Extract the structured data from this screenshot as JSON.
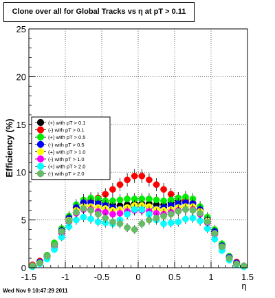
{
  "title": "Clone  over all for Global Tracks vs η at pT > 0.11",
  "footer": "Wed Nov  9 10:47:29 2011",
  "colors": {
    "black": "#000000",
    "red": "#ff0000",
    "green": "#00ee00",
    "blue": "#0000ff",
    "yellow": "#ffff00",
    "magenta": "#ff00ff",
    "cyan": "#00ffff",
    "olive": "#66bb66"
  },
  "chart_data": {
    "type": "scatter",
    "title": "Clone  over all for Global Tracks vs η at pT > 0.11",
    "xlabel": "η",
    "ylabel": "Efficiency (%)",
    "xlim": [
      -1.5,
      1.5
    ],
    "ylim": [
      0,
      25
    ],
    "x_ticks": [
      "-1.5",
      "-1",
      "-0.5",
      "0",
      "0.5",
      "1",
      "1.5"
    ],
    "y_ticks": [
      "0",
      "5",
      "10",
      "15",
      "20",
      "25"
    ],
    "grid": true,
    "legend_position": "left-middle",
    "legend": [
      {
        "label": "(+) with pT > 0.1",
        "color": "#000000"
      },
      {
        "label": "(-) with pT > 0.1",
        "color": "#ff0000"
      },
      {
        "label": "(+) with pT > 0.5",
        "color": "#00ee00"
      },
      {
        "label": "(-) with pT > 0.5",
        "color": "#0000ff"
      },
      {
        "label": "(+) with pT > 1.0",
        "color": "#ffff00"
      },
      {
        "label": "(-) with pT > 1.0",
        "color": "#ff00ff"
      },
      {
        "label": "(+) with pT > 2.0",
        "color": "#00ffff"
      },
      {
        "label": "(-) with pT > 2.0",
        "color": "#66bb66"
      }
    ],
    "x": [
      -1.45,
      -1.35,
      -1.25,
      -1.15,
      -1.05,
      -0.95,
      -0.85,
      -0.75,
      -0.65,
      -0.55,
      -0.45,
      -0.35,
      -0.25,
      -0.15,
      -0.05,
      0.05,
      0.15,
      0.25,
      0.35,
      0.45,
      0.55,
      0.65,
      0.75,
      0.85,
      0.95,
      1.05,
      1.15,
      1.25,
      1.35,
      1.45
    ],
    "series": [
      {
        "color": "#000000",
        "values": [
          0.2,
          0.6,
          1.2,
          2.4,
          3.8,
          5.0,
          6.2,
          6.8,
          7.0,
          7.0,
          6.8,
          6.6,
          6.5,
          6.6,
          6.7,
          6.7,
          6.7,
          6.6,
          6.6,
          6.8,
          7.0,
          7.0,
          6.7,
          6.0,
          5.0,
          3.7,
          2.3,
          1.1,
          0.5,
          0.2
        ]
      },
      {
        "color": "#ff0000",
        "values": [
          0.3,
          0.7,
          1.3,
          2.5,
          3.9,
          5.1,
          6.3,
          6.9,
          7.1,
          7.3,
          7.7,
          8.2,
          8.7,
          9.2,
          9.6,
          9.6,
          9.2,
          8.7,
          8.2,
          7.7,
          7.3,
          7.1,
          6.8,
          6.1,
          5.1,
          3.8,
          2.4,
          1.2,
          0.6,
          0.2
        ]
      },
      {
        "color": "#00ee00",
        "values": [
          0.2,
          0.6,
          1.3,
          2.6,
          4.1,
          5.4,
          6.6,
          7.1,
          7.3,
          7.2,
          7.0,
          7.0,
          7.1,
          7.2,
          7.2,
          7.2,
          7.2,
          7.1,
          7.0,
          7.1,
          7.3,
          7.4,
          7.2,
          6.4,
          5.3,
          4.0,
          2.5,
          1.2,
          0.5,
          0.2
        ]
      },
      {
        "color": "#0000ff",
        "values": [
          0.2,
          0.6,
          1.2,
          2.4,
          3.9,
          5.2,
          6.3,
          6.8,
          6.8,
          6.7,
          6.5,
          6.3,
          6.2,
          6.3,
          6.4,
          6.4,
          6.3,
          6.2,
          6.3,
          6.5,
          6.7,
          6.8,
          6.7,
          6.1,
          5.0,
          3.8,
          2.3,
          1.1,
          0.5,
          0.2
        ]
      },
      {
        "color": "#ffff00",
        "values": [
          0.2,
          0.5,
          1.1,
          2.3,
          3.7,
          5.0,
          6.0,
          6.4,
          6.4,
          6.3,
          6.2,
          6.0,
          6.1,
          6.3,
          6.5,
          6.5,
          6.4,
          6.1,
          6.0,
          6.1,
          6.3,
          6.4,
          6.4,
          5.9,
          4.9,
          3.6,
          2.2,
          1.0,
          0.4,
          0.2
        ]
      },
      {
        "color": "#ff00ff",
        "values": [
          0.2,
          0.5,
          1.1,
          2.2,
          3.6,
          4.8,
          5.7,
          6.1,
          6.1,
          5.9,
          5.8,
          5.6,
          5.7,
          5.9,
          6.0,
          6.0,
          5.9,
          5.7,
          5.6,
          5.8,
          6.0,
          6.1,
          6.1,
          5.6,
          4.7,
          3.5,
          2.1,
          1.0,
          0.4,
          0.2
        ]
      },
      {
        "color": "#00ffff",
        "values": [
          0.1,
          0.4,
          0.9,
          1.9,
          3.2,
          4.3,
          5.0,
          5.3,
          5.1,
          4.8,
          4.7,
          4.6,
          5.0,
          5.6,
          6.1,
          6.1,
          5.6,
          5.0,
          4.6,
          4.7,
          4.8,
          5.1,
          5.2,
          4.9,
          4.1,
          3.0,
          1.8,
          0.8,
          0.3,
          0.1
        ]
      },
      {
        "color": "#66bb66",
        "values": [
          0.2,
          0.5,
          1.2,
          2.4,
          3.8,
          4.9,
          5.8,
          6.2,
          6.0,
          5.6,
          5.2,
          4.8,
          4.6,
          4.2,
          4.0,
          4.6,
          5.0,
          5.2,
          5.4,
          5.6,
          5.9,
          6.1,
          6.0,
          5.7,
          4.8,
          3.6,
          2.2,
          1.0,
          0.4,
          0.2
        ]
      }
    ]
  }
}
